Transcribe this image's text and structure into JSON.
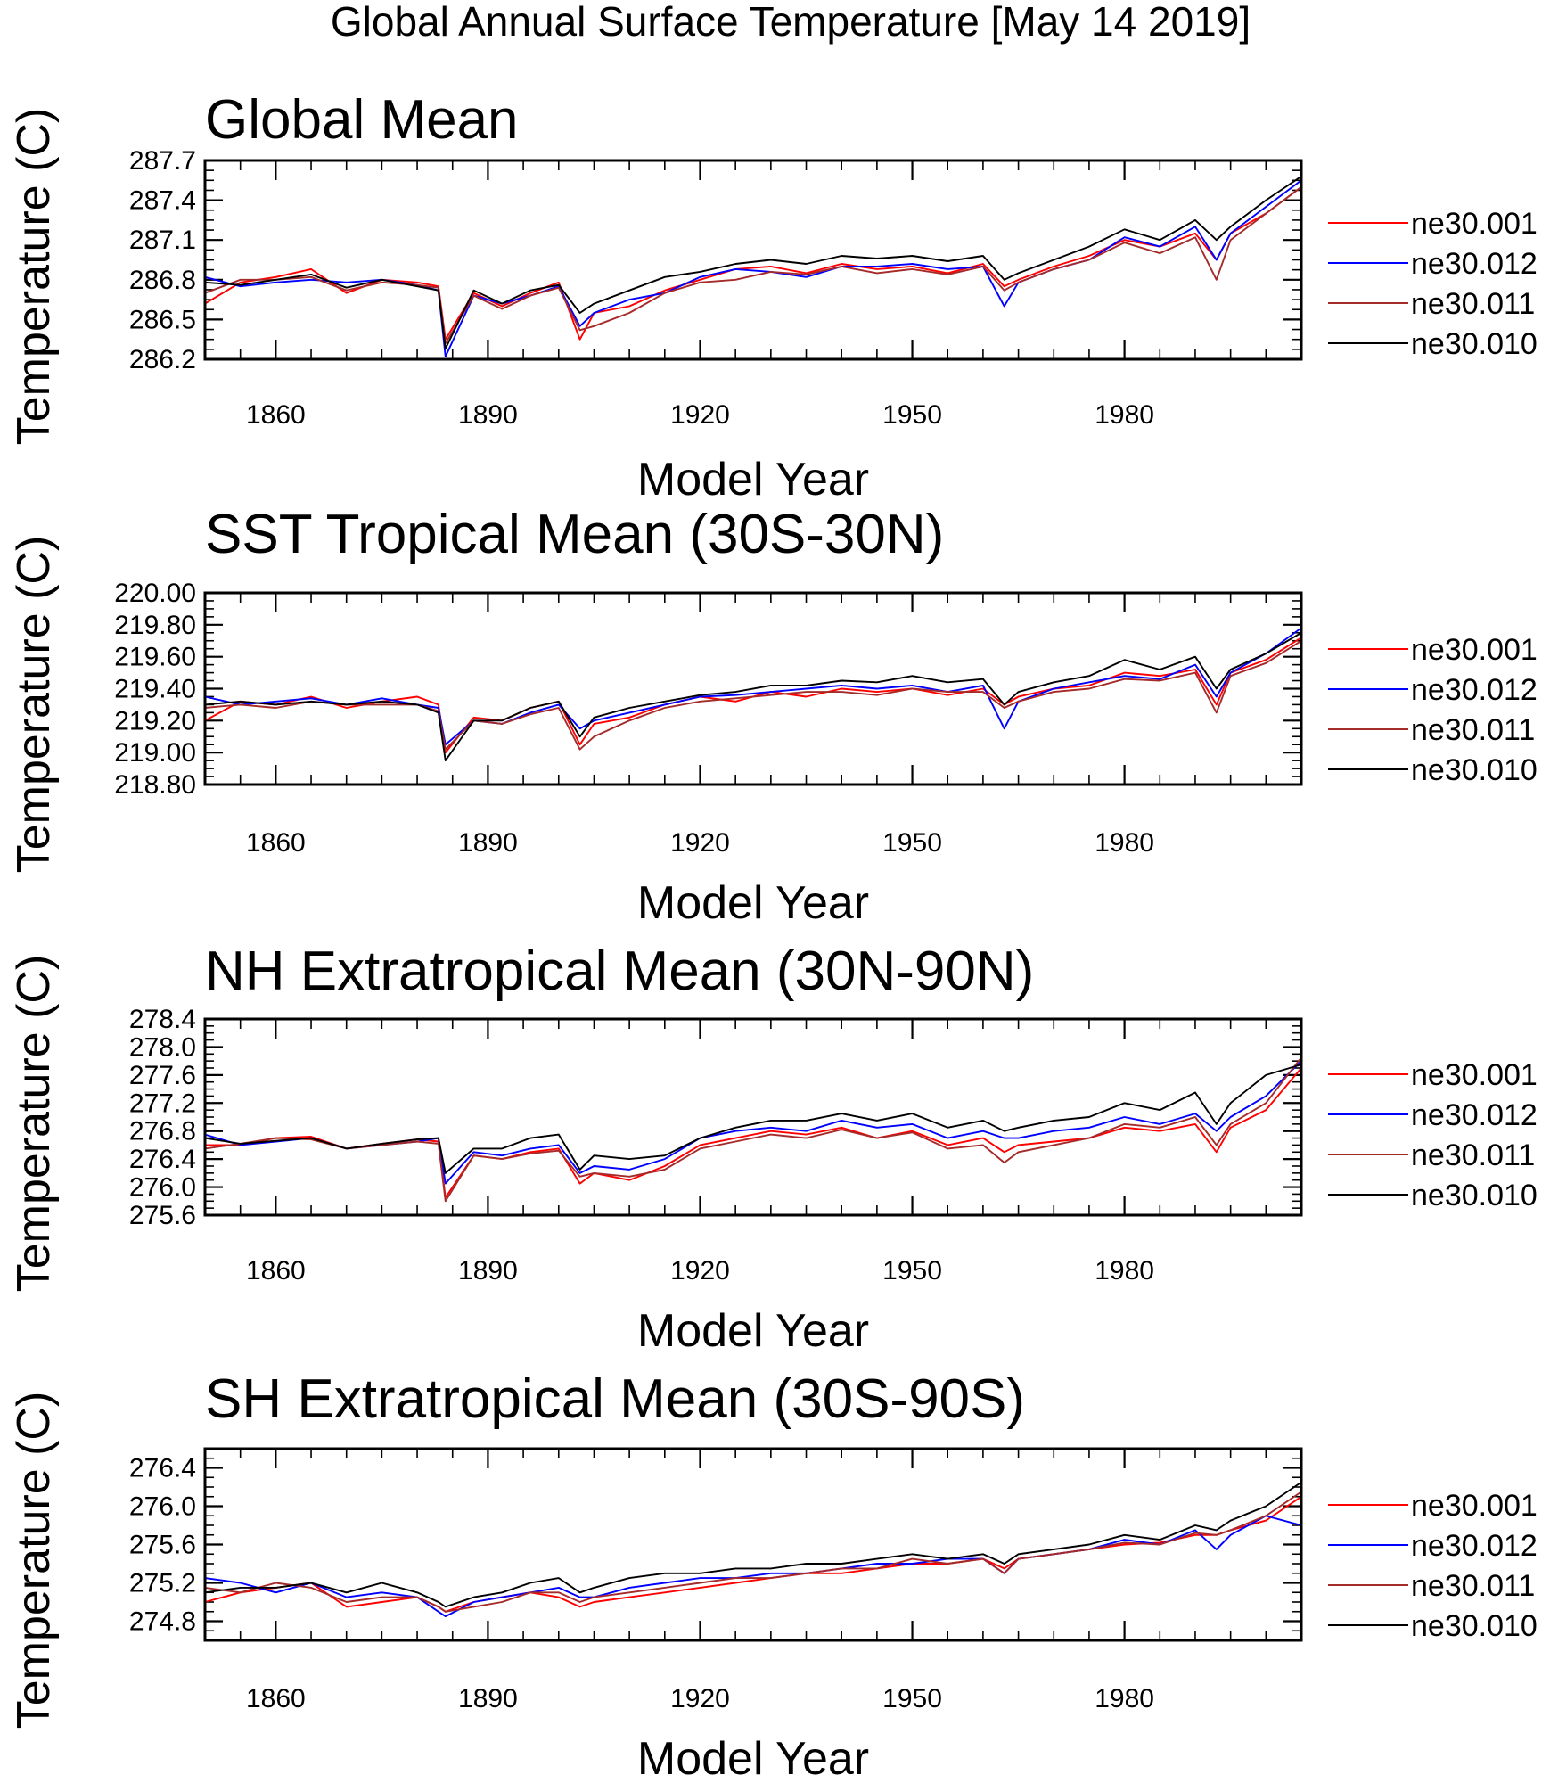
{
  "title": "Global Annual Surface Temperature [May 14 2019]",
  "legend_labels": [
    "ne30.001",
    "ne30.012",
    "ne30.011",
    "ne30.010"
  ],
  "colors": {
    "ne30.001": "#ff0000",
    "ne30.012": "#0000ff",
    "ne30.011": "#a52a2a",
    "ne30.010": "#000000"
  },
  "chart_data": [
    {
      "type": "line",
      "title": "Global Mean",
      "xlabel": "Model Year",
      "ylabel": "Temperature (C)",
      "xlim": [
        1850,
        2005
      ],
      "ylim": [
        286.2,
        287.7
      ],
      "xticks": [
        1860,
        1890,
        1920,
        1950,
        1980
      ],
      "yticks": [
        "286.2",
        "286.5",
        "286.8",
        "287.1",
        "287.4",
        "287.7"
      ],
      "legend": "right",
      "x": [
        1850,
        1855,
        1860,
        1865,
        1870,
        1875,
        1880,
        1883,
        1884,
        1888,
        1892,
        1896,
        1900,
        1903,
        1905,
        1910,
        1915,
        1920,
        1925,
        1930,
        1935,
        1940,
        1945,
        1950,
        1955,
        1960,
        1963,
        1965,
        1970,
        1975,
        1980,
        1985,
        1990,
        1993,
        1995,
        2000,
        2005
      ],
      "series": [
        {
          "name": "ne30.001",
          "values": [
            286.62,
            286.78,
            286.82,
            286.88,
            286.7,
            286.8,
            286.78,
            286.75,
            286.35,
            286.7,
            286.6,
            286.7,
            286.78,
            286.35,
            286.55,
            286.6,
            286.72,
            286.8,
            286.88,
            286.9,
            286.85,
            286.92,
            286.88,
            286.9,
            286.85,
            286.92,
            286.75,
            286.8,
            286.9,
            286.98,
            287.1,
            287.05,
            287.15,
            286.95,
            287.15,
            287.3,
            287.5
          ]
        },
        {
          "name": "ne30.012",
          "values": [
            286.82,
            286.75,
            286.78,
            286.8,
            286.78,
            286.8,
            286.76,
            286.72,
            286.22,
            286.68,
            286.62,
            286.68,
            286.75,
            286.45,
            286.55,
            286.65,
            286.7,
            286.82,
            286.88,
            286.86,
            286.82,
            286.9,
            286.9,
            286.92,
            286.88,
            286.9,
            286.6,
            286.78,
            286.88,
            286.95,
            287.12,
            287.05,
            287.2,
            286.95,
            287.15,
            287.35,
            287.55
          ]
        },
        {
          "name": "ne30.011",
          "values": [
            286.7,
            286.8,
            286.8,
            286.82,
            286.72,
            286.78,
            286.76,
            286.74,
            286.32,
            286.68,
            286.58,
            286.68,
            286.74,
            286.42,
            286.45,
            286.55,
            286.7,
            286.78,
            286.8,
            286.86,
            286.84,
            286.9,
            286.85,
            286.88,
            286.84,
            286.9,
            286.72,
            286.78,
            286.88,
            286.95,
            287.08,
            287.0,
            287.12,
            286.8,
            287.1,
            287.3,
            287.5
          ]
        },
        {
          "name": "ne30.010",
          "values": [
            286.78,
            286.76,
            286.8,
            286.84,
            286.74,
            286.8,
            286.75,
            286.72,
            286.28,
            286.72,
            286.62,
            286.72,
            286.76,
            286.55,
            286.62,
            286.72,
            286.82,
            286.86,
            286.92,
            286.95,
            286.92,
            286.98,
            286.96,
            286.98,
            286.94,
            286.98,
            286.8,
            286.85,
            286.95,
            287.05,
            287.18,
            287.1,
            287.25,
            287.1,
            287.2,
            287.4,
            287.58
          ]
        }
      ]
    },
    {
      "type": "line",
      "title": "SST Tropical Mean (30S-30N)",
      "xlabel": "Model Year",
      "ylabel": "Temperature (C)",
      "xlim": [
        1850,
        2005
      ],
      "ylim": [
        218.8,
        220.0
      ],
      "xticks": [
        1860,
        1890,
        1920,
        1950,
        1980
      ],
      "yticks": [
        "218.80",
        "219.00",
        "219.20",
        "219.40",
        "219.60",
        "219.80",
        "220.00"
      ],
      "legend": "right",
      "x": [
        1850,
        1855,
        1860,
        1865,
        1870,
        1875,
        1880,
        1883,
        1884,
        1888,
        1892,
        1896,
        1900,
        1903,
        1905,
        1910,
        1915,
        1920,
        1925,
        1930,
        1935,
        1940,
        1945,
        1950,
        1955,
        1960,
        1963,
        1965,
        1970,
        1975,
        1980,
        1985,
        1990,
        1993,
        1995,
        2000,
        2005
      ],
      "series": [
        {
          "name": "ne30.001",
          "values": [
            219.2,
            219.32,
            219.3,
            219.35,
            219.28,
            219.32,
            219.35,
            219.3,
            219.0,
            219.22,
            219.2,
            219.28,
            219.32,
            219.05,
            219.18,
            219.22,
            219.3,
            219.35,
            219.32,
            219.38,
            219.35,
            219.4,
            219.38,
            219.4,
            219.36,
            219.4,
            219.3,
            219.35,
            219.4,
            219.42,
            219.5,
            219.48,
            219.52,
            219.3,
            219.5,
            219.58,
            219.72
          ]
        },
        {
          "name": "ne30.012",
          "values": [
            219.35,
            219.3,
            219.32,
            219.34,
            219.3,
            219.34,
            219.3,
            219.28,
            219.05,
            219.2,
            219.18,
            219.25,
            219.3,
            219.15,
            219.2,
            219.25,
            219.3,
            219.35,
            219.36,
            219.38,
            219.4,
            219.42,
            219.4,
            219.42,
            219.38,
            219.42,
            219.15,
            219.32,
            219.4,
            219.44,
            219.48,
            219.46,
            219.55,
            219.35,
            219.5,
            219.62,
            219.78
          ]
        },
        {
          "name": "ne30.011",
          "values": [
            219.28,
            219.3,
            219.28,
            219.32,
            219.3,
            219.3,
            219.3,
            219.26,
            219.02,
            219.2,
            219.18,
            219.24,
            219.28,
            219.02,
            219.1,
            219.2,
            219.28,
            219.32,
            219.34,
            219.36,
            219.38,
            219.38,
            219.36,
            219.4,
            219.38,
            219.38,
            219.28,
            219.32,
            219.38,
            219.4,
            219.46,
            219.45,
            219.5,
            219.25,
            219.48,
            219.56,
            219.7
          ]
        },
        {
          "name": "ne30.010",
          "values": [
            219.3,
            219.32,
            219.3,
            219.32,
            219.3,
            219.32,
            219.3,
            219.25,
            218.95,
            219.2,
            219.2,
            219.28,
            219.32,
            219.1,
            219.22,
            219.28,
            219.32,
            219.36,
            219.38,
            219.42,
            219.42,
            219.45,
            219.44,
            219.48,
            219.44,
            219.46,
            219.3,
            219.38,
            219.44,
            219.48,
            219.58,
            219.52,
            219.6,
            219.4,
            219.52,
            219.62,
            219.75
          ]
        }
      ]
    },
    {
      "type": "line",
      "title": "NH Extratropical Mean (30N-90N)",
      "xlabel": "Model Year",
      "ylabel": "Temperature (C)",
      "xlim": [
        1850,
        2005
      ],
      "ylim": [
        275.6,
        278.4
      ],
      "xticks": [
        1860,
        1890,
        1920,
        1950,
        1980
      ],
      "yticks": [
        "275.6",
        "276.0",
        "276.4",
        "276.8",
        "277.2",
        "277.6",
        "278.0",
        "278.4"
      ],
      "legend": "right",
      "x": [
        1850,
        1855,
        1860,
        1865,
        1870,
        1875,
        1880,
        1883,
        1884,
        1888,
        1892,
        1896,
        1900,
        1903,
        1905,
        1910,
        1915,
        1920,
        1925,
        1930,
        1935,
        1940,
        1945,
        1950,
        1955,
        1960,
        1963,
        1965,
        1970,
        1975,
        1980,
        1985,
        1990,
        1993,
        1995,
        2000,
        2005
      ],
      "series": [
        {
          "name": "ne30.001",
          "values": [
            276.6,
            276.6,
            276.7,
            276.72,
            276.55,
            276.62,
            276.68,
            276.65,
            275.85,
            276.45,
            276.4,
            276.5,
            276.55,
            276.05,
            276.2,
            276.1,
            276.3,
            276.6,
            276.7,
            276.8,
            276.75,
            276.85,
            276.7,
            276.8,
            276.6,
            276.7,
            276.5,
            276.6,
            276.65,
            276.7,
            276.85,
            276.8,
            276.9,
            276.5,
            276.85,
            277.1,
            277.7
          ]
        },
        {
          "name": "ne30.012",
          "values": [
            276.75,
            276.6,
            276.65,
            276.7,
            276.55,
            276.6,
            276.65,
            276.7,
            276.05,
            276.5,
            276.45,
            276.55,
            276.6,
            276.2,
            276.3,
            276.25,
            276.4,
            276.7,
            276.8,
            276.85,
            276.8,
            276.95,
            276.85,
            276.9,
            276.7,
            276.8,
            276.7,
            276.7,
            276.8,
            276.85,
            277.0,
            276.9,
            277.05,
            276.8,
            277.0,
            277.3,
            277.8
          ]
        },
        {
          "name": "ne30.011",
          "values": [
            276.55,
            276.62,
            276.7,
            276.68,
            276.55,
            276.6,
            276.65,
            276.62,
            275.8,
            276.45,
            276.4,
            276.48,
            276.52,
            276.15,
            276.2,
            276.15,
            276.25,
            276.55,
            276.65,
            276.75,
            276.7,
            276.82,
            276.7,
            276.78,
            276.55,
            276.6,
            276.35,
            276.5,
            276.6,
            276.7,
            276.9,
            276.85,
            277.0,
            276.6,
            276.9,
            277.2,
            277.85
          ]
        },
        {
          "name": "ne30.010",
          "values": [
            276.7,
            276.62,
            276.66,
            276.7,
            276.55,
            276.62,
            276.68,
            276.7,
            276.2,
            276.55,
            276.55,
            276.7,
            276.75,
            276.25,
            276.45,
            276.4,
            276.45,
            276.7,
            276.85,
            276.95,
            276.95,
            277.05,
            276.95,
            277.05,
            276.85,
            276.95,
            276.8,
            276.85,
            276.95,
            277.0,
            277.2,
            277.1,
            277.35,
            276.9,
            277.2,
            277.6,
            277.75
          ]
        }
      ]
    },
    {
      "type": "line",
      "title": "SH Extratropical Mean (30S-90S)",
      "xlabel": "Model Year",
      "ylabel": "Temperature (C)",
      "xlim": [
        1850,
        2005
      ],
      "ylim": [
        274.6,
        276.6
      ],
      "xticks": [
        1860,
        1890,
        1920,
        1950,
        1980
      ],
      "yticks": [
        "274.8",
        "275.2",
        "275.6",
        "276.0",
        "276.4"
      ],
      "legend": "right",
      "x": [
        1850,
        1855,
        1860,
        1865,
        1870,
        1875,
        1880,
        1883,
        1884,
        1888,
        1892,
        1896,
        1900,
        1903,
        1905,
        1910,
        1915,
        1920,
        1925,
        1930,
        1935,
        1940,
        1945,
        1950,
        1955,
        1960,
        1963,
        1965,
        1970,
        1975,
        1980,
        1985,
        1990,
        1993,
        1995,
        2000,
        2005
      ],
      "series": [
        {
          "name": "ne30.001",
          "values": [
            275.0,
            275.1,
            275.15,
            275.2,
            274.95,
            275.0,
            275.05,
            274.95,
            274.9,
            275.0,
            275.05,
            275.1,
            275.05,
            274.95,
            275.0,
            275.05,
            275.1,
            275.15,
            275.2,
            275.25,
            275.3,
            275.3,
            275.35,
            275.4,
            275.4,
            275.45,
            275.35,
            275.45,
            275.5,
            275.55,
            275.6,
            275.62,
            275.7,
            275.7,
            275.75,
            275.85,
            276.1
          ]
        },
        {
          "name": "ne30.012",
          "values": [
            275.25,
            275.2,
            275.1,
            275.2,
            275.05,
            275.1,
            275.05,
            274.9,
            274.85,
            275.0,
            275.05,
            275.1,
            275.15,
            275.05,
            275.05,
            275.15,
            275.2,
            275.25,
            275.25,
            275.3,
            275.3,
            275.35,
            275.4,
            275.4,
            275.45,
            275.45,
            275.3,
            275.45,
            275.5,
            275.55,
            275.65,
            275.6,
            275.75,
            275.55,
            275.7,
            275.9,
            275.8
          ]
        },
        {
          "name": "ne30.011",
          "values": [
            275.15,
            275.1,
            275.2,
            275.15,
            275.0,
            275.05,
            275.05,
            274.95,
            274.9,
            274.95,
            275.0,
            275.1,
            275.1,
            275.0,
            275.05,
            275.1,
            275.15,
            275.2,
            275.25,
            275.25,
            275.3,
            275.35,
            275.35,
            275.45,
            275.4,
            275.45,
            275.3,
            275.45,
            275.5,
            275.55,
            275.62,
            275.6,
            275.72,
            275.7,
            275.75,
            275.9,
            276.15
          ]
        },
        {
          "name": "ne30.010",
          "values": [
            275.1,
            275.15,
            275.15,
            275.2,
            275.1,
            275.2,
            275.1,
            275.0,
            274.95,
            275.05,
            275.1,
            275.2,
            275.25,
            275.1,
            275.15,
            275.25,
            275.3,
            275.3,
            275.35,
            275.35,
            275.4,
            275.4,
            275.45,
            275.5,
            275.45,
            275.5,
            275.4,
            275.5,
            275.55,
            275.6,
            275.7,
            275.65,
            275.8,
            275.75,
            275.85,
            276.0,
            276.25
          ]
        }
      ]
    }
  ]
}
